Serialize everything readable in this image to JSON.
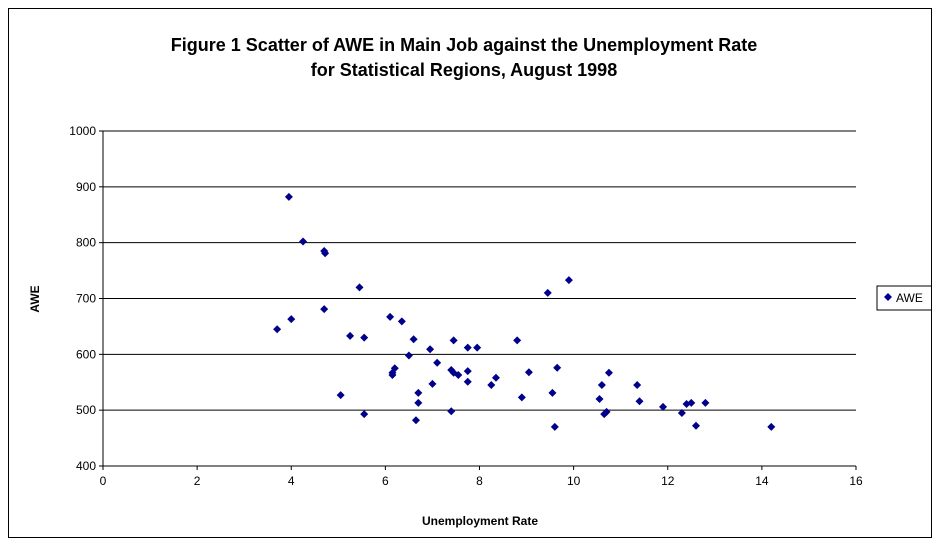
{
  "chart_data": {
    "type": "scatter",
    "title_line1": "Figure 1 Scatter of AWE in Main Job against the Unemployment Rate",
    "title_line2": "for Statistical Regions, August 1998",
    "xlabel": "Unemployment Rate",
    "ylabel": "AWE",
    "xlim": [
      0,
      16
    ],
    "ylim": [
      400,
      1000
    ],
    "x_ticks": [
      0,
      2,
      4,
      6,
      8,
      10,
      12,
      14,
      16
    ],
    "y_ticks": [
      400,
      500,
      600,
      700,
      800,
      900,
      1000
    ],
    "grid": "horizontal",
    "legend": "right",
    "marker_color": "#00008B",
    "series": [
      {
        "name": "AWE",
        "points": [
          [
            3.7,
            645
          ],
          [
            3.95,
            882
          ],
          [
            4.0,
            663
          ],
          [
            4.25,
            802
          ],
          [
            4.7,
            785
          ],
          [
            4.72,
            781
          ],
          [
            4.7,
            681
          ],
          [
            5.05,
            527
          ],
          [
            5.25,
            633
          ],
          [
            5.45,
            720
          ],
          [
            5.55,
            630
          ],
          [
            5.55,
            493
          ],
          [
            6.1,
            667
          ],
          [
            6.15,
            567
          ],
          [
            6.2,
            575
          ],
          [
            6.15,
            563
          ],
          [
            6.35,
            659
          ],
          [
            6.5,
            598
          ],
          [
            6.6,
            627
          ],
          [
            6.7,
            531
          ],
          [
            6.7,
            513
          ],
          [
            6.65,
            482
          ],
          [
            6.95,
            609
          ],
          [
            7.0,
            547
          ],
          [
            7.1,
            585
          ],
          [
            7.4,
            572
          ],
          [
            7.45,
            625
          ],
          [
            7.45,
            567
          ],
          [
            7.55,
            563
          ],
          [
            7.4,
            498
          ],
          [
            7.75,
            612
          ],
          [
            7.75,
            570
          ],
          [
            7.75,
            551
          ],
          [
            7.95,
            612
          ],
          [
            8.25,
            545
          ],
          [
            8.35,
            558
          ],
          [
            8.8,
            625
          ],
          [
            8.9,
            523
          ],
          [
            9.05,
            568
          ],
          [
            9.45,
            710
          ],
          [
            9.55,
            531
          ],
          [
            9.6,
            470
          ],
          [
            9.65,
            576
          ],
          [
            9.9,
            733
          ],
          [
            10.55,
            520
          ],
          [
            10.6,
            545
          ],
          [
            10.65,
            493
          ],
          [
            10.7,
            497
          ],
          [
            10.75,
            567
          ],
          [
            11.35,
            545
          ],
          [
            11.4,
            516
          ],
          [
            11.9,
            506
          ],
          [
            12.3,
            495
          ],
          [
            12.4,
            511
          ],
          [
            12.5,
            513
          ],
          [
            12.6,
            472
          ],
          [
            12.8,
            513
          ],
          [
            14.2,
            470
          ]
        ]
      }
    ]
  }
}
